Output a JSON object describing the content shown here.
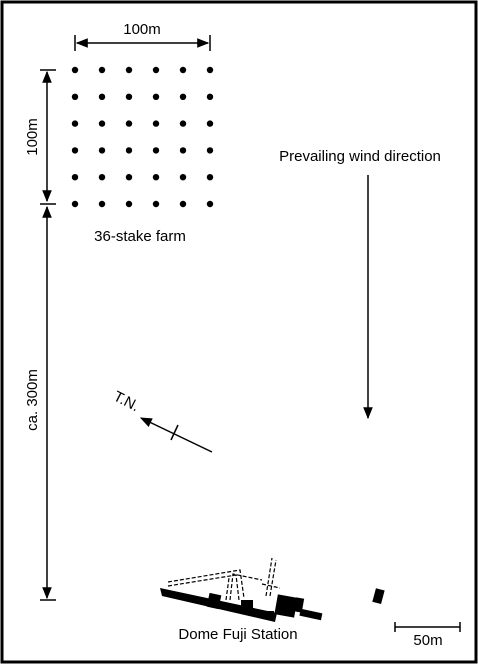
{
  "labels": {
    "farm_width": "100m",
    "farm_height": "100m",
    "farm_name": "36-stake farm",
    "wind": "Prevailing wind direction",
    "distance": "ca. 300m",
    "north": "T.N.",
    "station": "Dome Fuji Station",
    "scale": "50m"
  }
}
